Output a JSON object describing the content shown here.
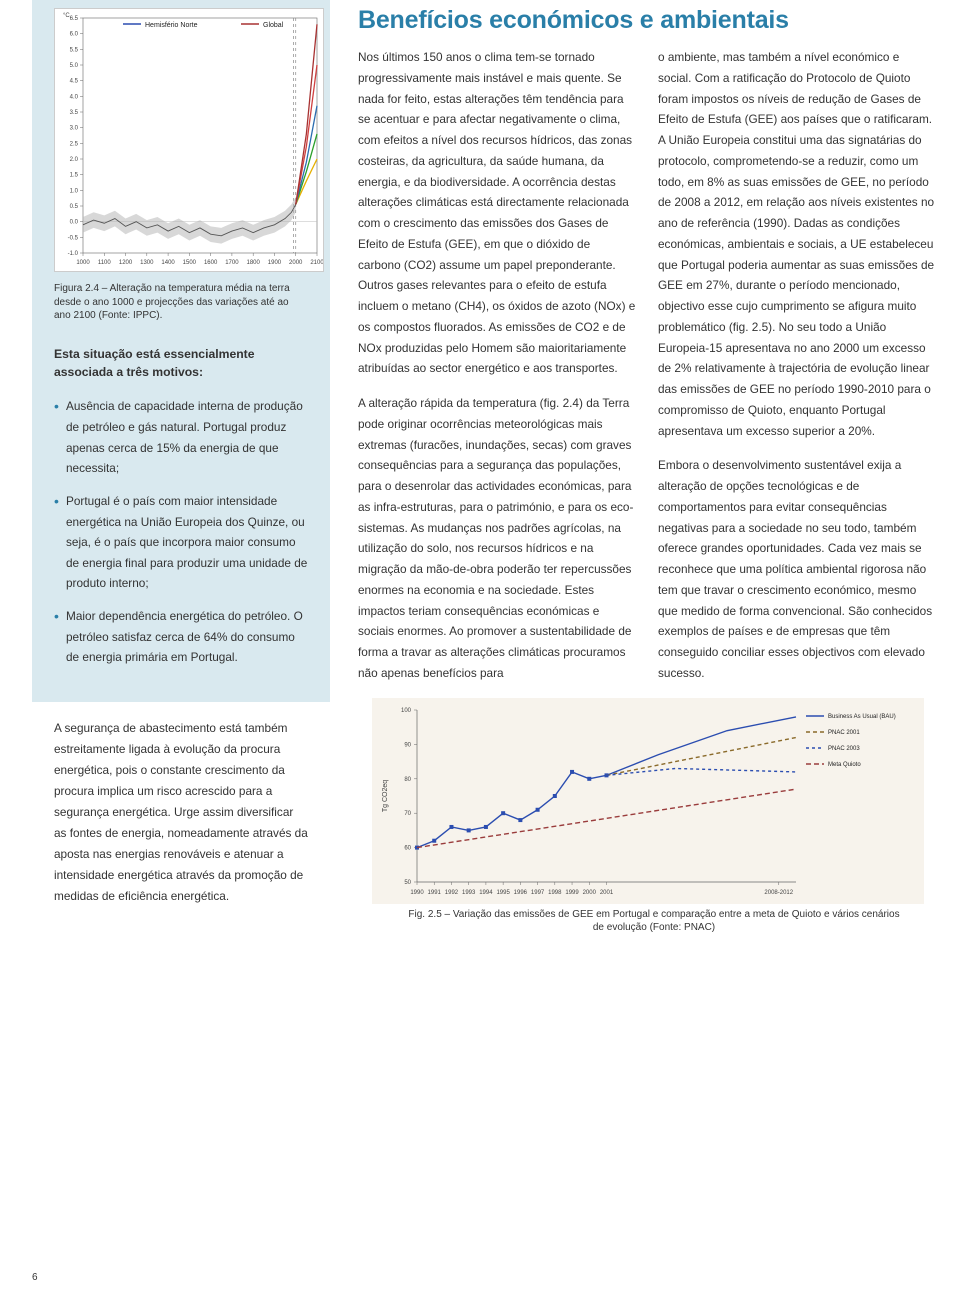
{
  "page_number": "6",
  "left": {
    "figure24": {
      "chart": {
        "type": "line",
        "xlim": [
          1000,
          2100
        ],
        "ylim": [
          -1.0,
          6.5
        ],
        "xticks": [
          1000,
          1100,
          1200,
          1300,
          1400,
          1500,
          1600,
          1700,
          1800,
          1900,
          2000,
          2100
        ],
        "yticks": [
          -1.0,
          -0.5,
          0.0,
          0.5,
          1.0,
          1.5,
          2.0,
          2.5,
          3.0,
          3.5,
          4.0,
          4.5,
          5.0,
          5.5,
          6.0,
          6.5
        ],
        "ylabel_unit": "°C",
        "legend": [
          {
            "label": "Hemisfério Norte",
            "color": "#2b4db0"
          },
          {
            "label": "Global",
            "color": "#a83232"
          }
        ],
        "historical_band_color": "#b8b8b8",
        "historical_line_color": "#555555",
        "historical_series": [
          {
            "x": 1000,
            "y": -0.1
          },
          {
            "x": 1050,
            "y": 0.05
          },
          {
            "x": 1100,
            "y": -0.05
          },
          {
            "x": 1150,
            "y": 0.1
          },
          {
            "x": 1200,
            "y": -0.15
          },
          {
            "x": 1250,
            "y": 0.0
          },
          {
            "x": 1300,
            "y": -0.2
          },
          {
            "x": 1350,
            "y": -0.1
          },
          {
            "x": 1400,
            "y": -0.3
          },
          {
            "x": 1450,
            "y": -0.15
          },
          {
            "x": 1500,
            "y": -0.35
          },
          {
            "x": 1550,
            "y": -0.2
          },
          {
            "x": 1600,
            "y": -0.4
          },
          {
            "x": 1650,
            "y": -0.45
          },
          {
            "x": 1700,
            "y": -0.3
          },
          {
            "x": 1750,
            "y": -0.2
          },
          {
            "x": 1800,
            "y": -0.35
          },
          {
            "x": 1850,
            "y": -0.2
          },
          {
            "x": 1900,
            "y": -0.1
          },
          {
            "x": 1950,
            "y": 0.1
          },
          {
            "x": 1980,
            "y": 0.3
          },
          {
            "x": 2000,
            "y": 0.55
          }
        ],
        "projection_series": [
          {
            "color": "#e6b000",
            "points": [
              {
                "x": 2000,
                "y": 0.55
              },
              {
                "x": 2050,
                "y": 1.3
              },
              {
                "x": 2100,
                "y": 2.0
              }
            ]
          },
          {
            "color": "#2aa02a",
            "points": [
              {
                "x": 2000,
                "y": 0.55
              },
              {
                "x": 2050,
                "y": 1.6
              },
              {
                "x": 2100,
                "y": 2.8
              }
            ]
          },
          {
            "color": "#2b6cb0",
            "points": [
              {
                "x": 2000,
                "y": 0.55
              },
              {
                "x": 2050,
                "y": 1.9
              },
              {
                "x": 2100,
                "y": 3.7
              }
            ]
          },
          {
            "color": "#d04040",
            "points": [
              {
                "x": 2000,
                "y": 0.55
              },
              {
                "x": 2050,
                "y": 2.4
              },
              {
                "x": 2100,
                "y": 5.0
              }
            ]
          },
          {
            "color": "#a83232",
            "points": [
              {
                "x": 2000,
                "y": 0.55
              },
              {
                "x": 2050,
                "y": 2.8
              },
              {
                "x": 2100,
                "y": 6.3
              }
            ]
          }
        ],
        "vertical_refs": [
          1990,
          2000
        ],
        "background_color": "#ffffff",
        "grid_color": "#e0e0e0",
        "axis_color": "#666666",
        "tick_fontsize": 6
      },
      "caption": "Figura 2.4 – Alteração na temperatura média na terra desde o ano 1000 e projecções das variações até ao ano 2100 (Fonte: IPPC)."
    },
    "intro": "Esta situação está essencialmente associada a três motivos:",
    "bullets": [
      "Ausência de capacidade interna de produção de petróleo e gás natural. Portugal produz apenas cerca de 15% da energia de que necessita;",
      "Portugal é o país com maior intensidade energética na União Europeia dos Quinze, ou seja, é o país que incorpora maior consumo de energia final para produzir uma unidade de produto interno;",
      "Maior dependência energética do petróleo. O petróleo satisfaz cerca de 64% do consumo de energia primária em Portugal."
    ],
    "lower_para": "A segurança de abastecimento está também estreitamente ligada à evolução da procura energética, pois o constante crescimento da procura implica um risco acrescido para a segurança energética. Urge assim diversificar as fontes de energia, nomeadamente através da aposta nas energias renováveis e atenuar a intensidade energética através da promoção de medidas de eficiência energética."
  },
  "right": {
    "title": "Benefícios económicos e ambientais",
    "col1": {
      "p1": "Nos últimos 150 anos o clima tem-se tornado progressivamente mais instável e mais quente. Se nada for feito, estas alterações têm tendência para se acentuar e para afectar negativamente o clima, com efeitos a nível dos recursos hídricos, das zonas costeiras, da agricultura, da saúde humana, da energia, e da biodiversidade. A ocorrência destas alterações climáticas está directamente relacionada com o crescimento das emissões dos Gases de Efeito de Estufa (GEE), em que o dióxido de carbono (CO2) assume um papel preponderante. Outros gases relevantes para o efeito de estufa incluem o metano (CH4), os óxidos de azoto (NOx) e os compostos fluorados. As emissões de CO2 e de NOx produzidas pelo Homem são maioritariamente atribuídas ao sector energético e aos transportes.",
      "p2": "A alteração rápida da temperatura (fig. 2.4) da Terra pode originar ocorrências meteorológicas mais extremas (furacões, inundações, secas) com graves consequências para a segurança das populações, para o desenrolar das actividades económicas, para as infra-estruturas, para o património, e para os eco-sistemas. As mudanças nos padrões agrícolas, na utilização do solo, nos recursos hídricos e na migração da mão-de-obra poderão ter repercussões enormes na economia e na sociedade. Estes impactos teriam consequências económicas e sociais enormes. Ao promover a sustentabilidade de forma a travar as alterações climáticas procuramos não apenas benefícios para"
    },
    "col2": {
      "p1": "o ambiente, mas também a nível económico e social. Com a ratificação do Protocolo de Quioto foram impostos os níveis de redução de Gases de Efeito de Estufa (GEE) aos países que o ratificaram. A União Europeia constitui uma das signatárias do protocolo, comprometendo-se a reduzir, como um todo, em 8% as suas emissões de GEE, no período de 2008 a 2012, em relação aos níveis existentes no ano de referência (1990). Dadas as condições económicas, ambientais e sociais, a UE estabeleceu que Portugal poderia aumentar as suas emissões de GEE em 27%, durante o período mencionado, objectivo esse cujo cumprimento se afigura muito problemático (fig. 2.5). No seu todo a União Europeia-15 apresentava no ano 2000 um excesso de 2% relativamente à trajectória de evolução linear das emissões de GEE no período 1990-2010 para o compromisso de Quioto, enquanto Portugal apresentava um excesso superior a 20%.",
      "p2": "Embora o desenvolvimento sustentável exija a alteração de opções tecnológicas e de comportamentos para evitar consequências negativas para a sociedade no seu todo, também oferece grandes oportunidades. Cada vez mais se reconhece que uma política ambiental rigorosa não tem que travar o crescimento económico, mesmo que medido de forma convencional. São conhecidos exemplos de países e de empresas que têm conseguido conciliar esses objectivos com elevado sucesso."
    },
    "figure25": {
      "chart": {
        "type": "line",
        "xlim": [
          1990,
          2012
        ],
        "ylim": [
          50,
          100
        ],
        "xticks": [
          1990,
          1991,
          1992,
          1993,
          1994,
          1995,
          1996,
          1997,
          1998,
          1999,
          2000,
          2001,
          "2008-2012"
        ],
        "yticks": [
          50,
          60,
          70,
          80,
          90,
          100
        ],
        "ylabel": "Tg CO2eq",
        "series": [
          {
            "label": "Business As Usual (BAU)",
            "color": "#2b4db0",
            "dash": "none",
            "points": [
              {
                "x": 1990,
                "y": 60
              },
              {
                "x": 1991,
                "y": 62
              },
              {
                "x": 1992,
                "y": 66
              },
              {
                "x": 1993,
                "y": 65
              },
              {
                "x": 1994,
                "y": 66
              },
              {
                "x": 1995,
                "y": 70
              },
              {
                "x": 1996,
                "y": 68
              },
              {
                "x": 1997,
                "y": 71
              },
              {
                "x": 1998,
                "y": 75
              },
              {
                "x": 1999,
                "y": 82
              },
              {
                "x": 2000,
                "y": 80
              },
              {
                "x": 2001,
                "y": 81
              },
              {
                "x": 2004,
                "y": 87
              },
              {
                "x": 2008,
                "y": 94
              },
              {
                "x": 2012,
                "y": 98
              }
            ]
          },
          {
            "label": "PNAC 2001",
            "color": "#8a6a2a",
            "dash": "4,3",
            "points": [
              {
                "x": 2001,
                "y": 81
              },
              {
                "x": 2005,
                "y": 85
              },
              {
                "x": 2012,
                "y": 92
              }
            ]
          },
          {
            "label": "PNAC 2003",
            "color": "#2b4db0",
            "dash": "3,3",
            "points": [
              {
                "x": 2001,
                "y": 81
              },
              {
                "x": 2005,
                "y": 83
              },
              {
                "x": 2012,
                "y": 82
              }
            ]
          },
          {
            "label": "Meta Quioto",
            "color": "#9a3c3c",
            "dash": "5,3",
            "points": [
              {
                "x": 1990,
                "y": 60
              },
              {
                "x": 2012,
                "y": 77
              }
            ]
          }
        ],
        "background_color": "#f7f3ec",
        "axis_color": "#666666",
        "tick_fontsize": 6,
        "legend_fontsize": 6
      },
      "caption": "Fig. 2.5 – Variação das emissões de GEE em Portugal e comparação entre a meta de Quioto e vários cenários de evolução (Fonte: PNAC)"
    }
  }
}
